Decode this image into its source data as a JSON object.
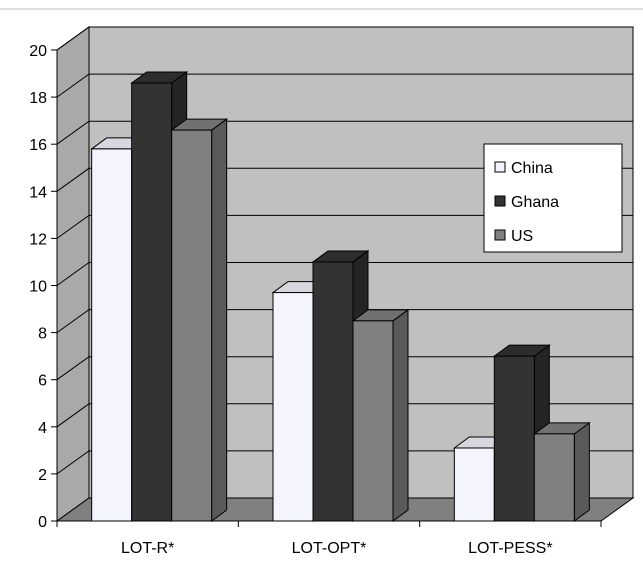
{
  "chart_data": {
    "type": "bar",
    "categories": [
      "LOT-R*",
      "LOT-OPT*",
      "LOT-PESS*"
    ],
    "series": [
      {
        "name": "China",
        "values": [
          15.8,
          9.7,
          3.1
        ],
        "color": "#f4f4ff"
      },
      {
        "name": "Ghana",
        "values": [
          18.6,
          11.0,
          7.0
        ],
        "color": "#333333"
      },
      {
        "name": "US",
        "values": [
          16.6,
          8.5,
          3.7
        ],
        "color": "#808080"
      }
    ],
    "ylim": [
      0,
      20
    ],
    "yticks": [
      "0",
      "2",
      "4",
      "6",
      "8",
      "10",
      "12",
      "14",
      "16",
      "18",
      "20"
    ],
    "grid": true,
    "legend_position": "right",
    "colors": {
      "wall": "#c0c0c0",
      "floor": "#808080",
      "side_wall": "#a9a9a9",
      "gridline": "#000000"
    }
  }
}
